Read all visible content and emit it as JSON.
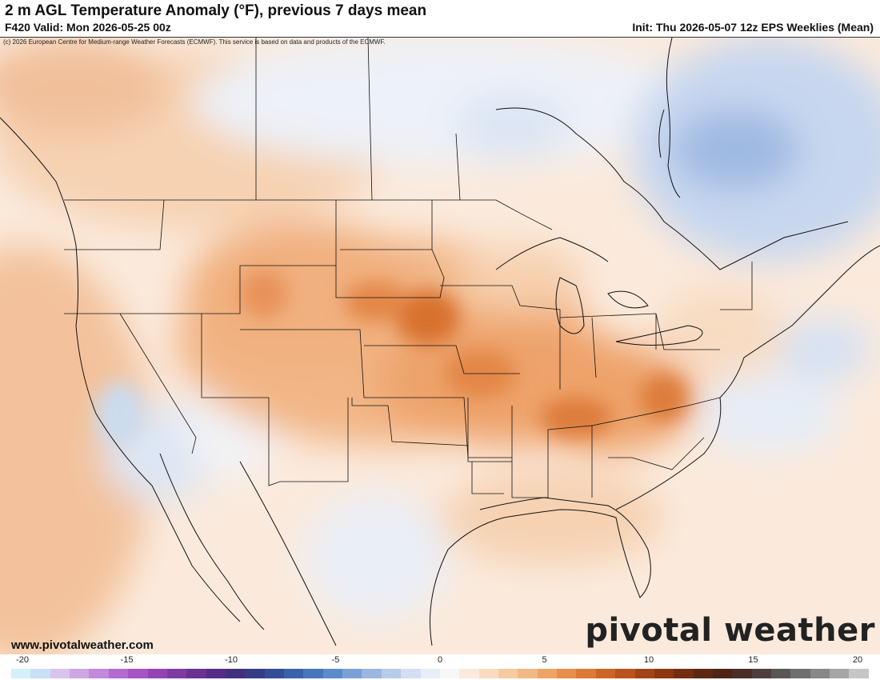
{
  "header": {
    "title": "2 m AGL Temperature Anomaly (°F), previous 7 days mean",
    "valid": "F420 Valid: Mon 2026-05-25 00z",
    "init": "Init: Thu 2026-05-07 12z EPS Weeklies (Mean)"
  },
  "map": {
    "copyright": "(c) 2026 European Centre for Medium-range Weather Forecasts (ECMWF). This service is based on data and products of the ECMWF.",
    "website": "www.pivotalweather.com",
    "logo": "pivotal weather"
  },
  "colorbar": {
    "tick_labels": [
      "-20",
      "-15",
      "-10",
      "-5",
      "0",
      "5",
      "10",
      "15",
      "20"
    ],
    "colors": [
      "#d4f0f8",
      "#c9dff5",
      "#d9c4ee",
      "#cfa6e6",
      "#c488dc",
      "#b56ad0",
      "#a653c3",
      "#9444b2",
      "#7f3aa1",
      "#6a3190",
      "#562c86",
      "#42307d",
      "#353c86",
      "#344d97",
      "#3a62aa",
      "#4677bc",
      "#5a8cca",
      "#7aa1d6",
      "#9bb6e0",
      "#b8cbe9",
      "#d3def2",
      "#e8eef8",
      "#f7f7f7",
      "#fbeadb",
      "#f9dcc0",
      "#f6cba2",
      "#f2b884",
      "#eea466",
      "#e88e4c",
      "#de7837",
      "#cf6327",
      "#bb511c",
      "#a44316",
      "#8c3712",
      "#732e11",
      "#5c2812",
      "#4f2417",
      "#4b2d27",
      "#4f3e3e",
      "#5a5656",
      "#6f6f6f",
      "#888888",
      "#a6a6a6",
      "#c6c6c6"
    ]
  }
}
